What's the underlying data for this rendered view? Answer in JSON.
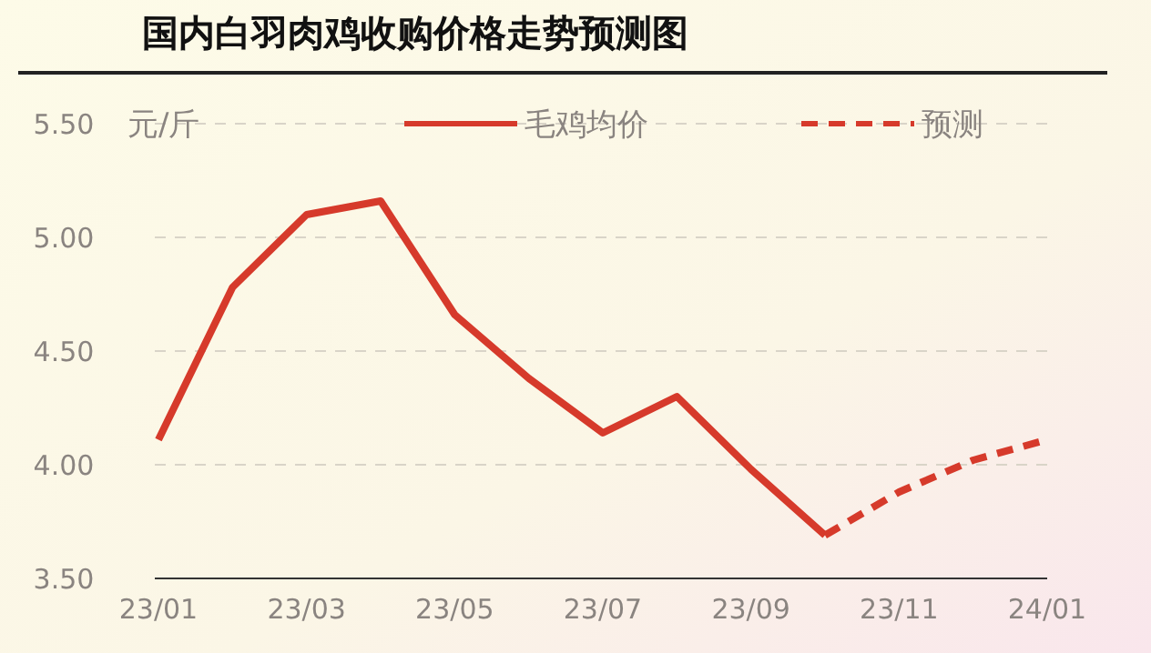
{
  "chart_data": {
    "type": "line",
    "title": "国内白羽肉鸡收购价格走势预测图",
    "ylabel": "元/斤",
    "categories": [
      "23/01",
      null,
      "23/03",
      null,
      "23/05",
      null,
      "23/07",
      null,
      "23/09",
      null,
      "23/11",
      null,
      "24/01"
    ],
    "series": [
      {
        "name": "毛鸡均价",
        "color": "#d63a2b",
        "line_style": "solid",
        "values": [
          4.11,
          4.78,
          5.1,
          5.16,
          4.66,
          4.38,
          4.14,
          4.3,
          3.98,
          3.69,
          null,
          null,
          null
        ]
      },
      {
        "name": "预测",
        "color": "#d63a2b",
        "line_style": "dashed",
        "values": [
          null,
          null,
          null,
          null,
          null,
          null,
          null,
          null,
          null,
          3.69,
          3.88,
          4.02,
          4.11
        ]
      }
    ],
    "ylim": [
      3.5,
      5.5
    ],
    "yticks": [
      {
        "value": 3.5,
        "label": "3.50"
      },
      {
        "value": 4,
        "label": "4.00"
      },
      {
        "value": 4.5,
        "label": "4.50"
      },
      {
        "value": 5,
        "label": "5.00"
      },
      {
        "value": 5.5,
        "label": "5.50"
      }
    ],
    "grid": "y",
    "legend": "top right"
  }
}
